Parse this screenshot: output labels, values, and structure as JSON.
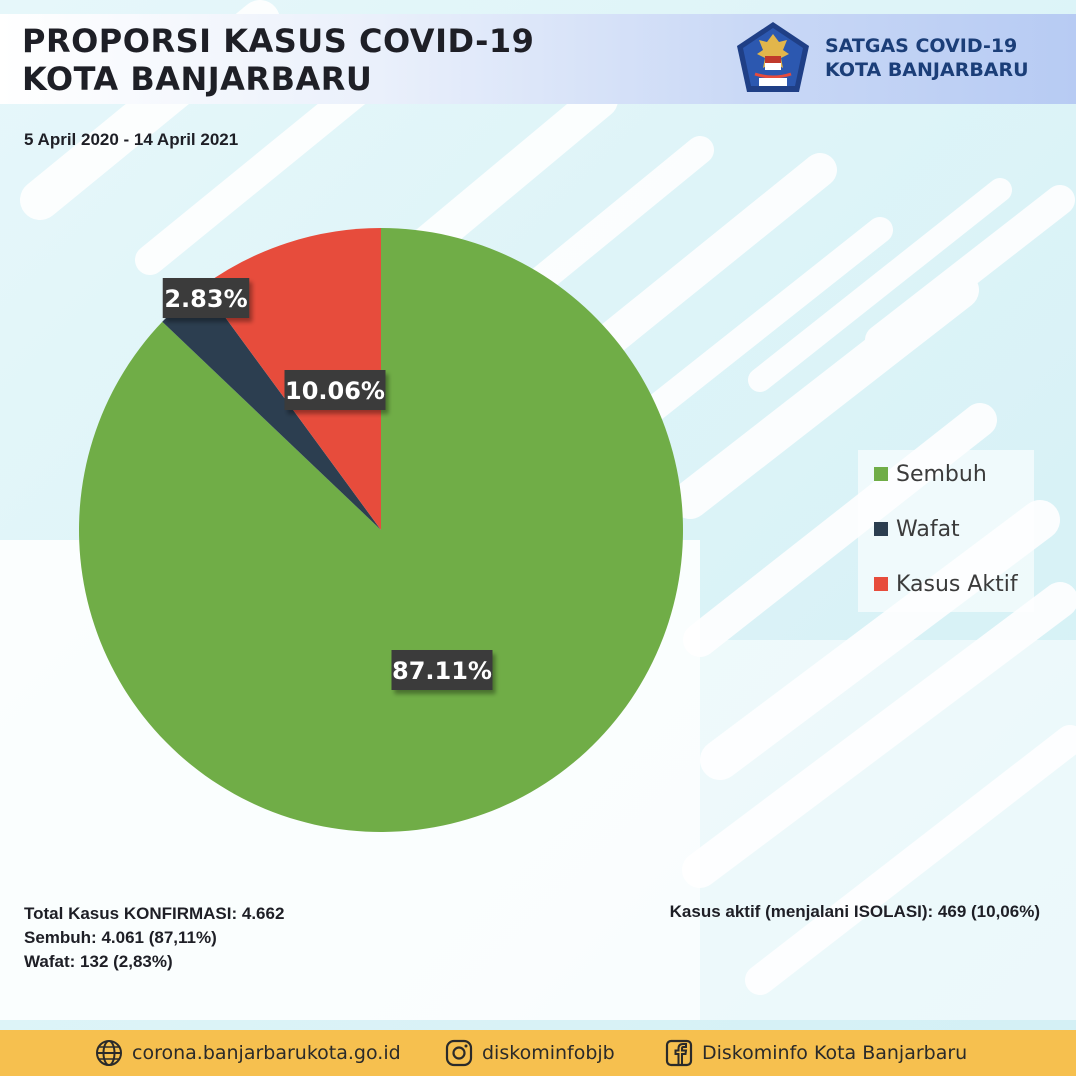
{
  "header": {
    "title_line1": "PROPORSI KASUS COVID-19",
    "title_line2": "KOTA BANJARBARU",
    "date_range": "5 April 2020 - 14 April 2021",
    "org_line1": "SATGAS COVID-19",
    "org_line2": "KOTA BANJARBARU"
  },
  "chart_data": {
    "type": "pie",
    "title": "",
    "slices": [
      {
        "name": "Sembuh",
        "value": 87.11,
        "label": "87.11%",
        "color": "#70ad47"
      },
      {
        "name": "Wafat",
        "value": 2.83,
        "label": "2.83%",
        "color": "#2c3e50"
      },
      {
        "name": "Kasus Aktif",
        "value": 10.06,
        "label": "10.06%",
        "color": "#e74c3c"
      }
    ],
    "legend_position": "right"
  },
  "legend": {
    "items": [
      {
        "label": "Sembuh",
        "color": "#70ad47"
      },
      {
        "label": "Wafat",
        "color": "#2c3e50"
      },
      {
        "label": "Kasus Aktif",
        "color": "#e74c3c"
      }
    ]
  },
  "stats": {
    "total": "Total Kasus KONFIRMASI: 4.662",
    "sembuh": "Sembuh: 4.061 (87,11%)",
    "wafat": "Wafat: 132 (2,83%)",
    "aktif": "Kasus aktif (menjalani ISOLASI): 469 (10,06%)"
  },
  "footer": {
    "website": "corona.banjarbarukota.go.id",
    "instagram": "diskominfobjb",
    "facebook": "Diskominfo Kota Banjarbaru",
    "website_icon": "globe-icon",
    "instagram_icon": "instagram-icon",
    "facebook_icon": "facebook-icon"
  },
  "colors": {
    "footer_bg": "#f6c04f",
    "title_text": "#1e1f26",
    "org_text": "#1b3e78"
  }
}
